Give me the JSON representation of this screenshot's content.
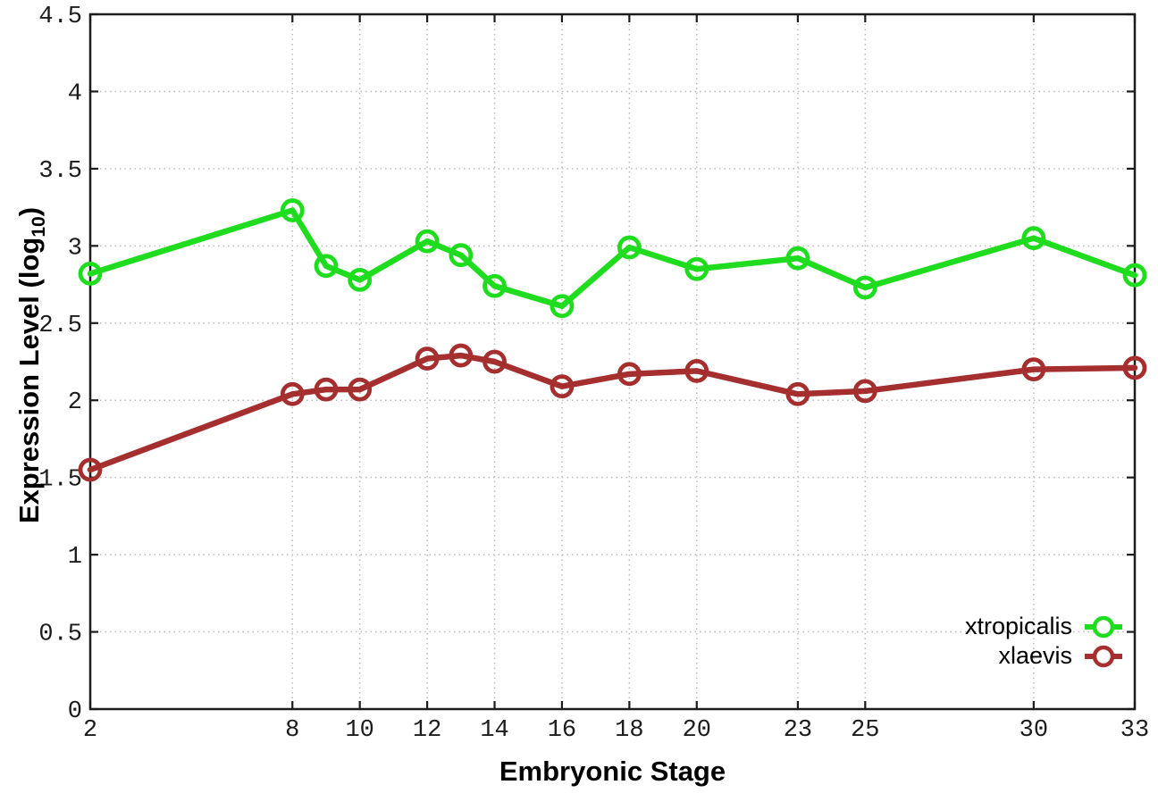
{
  "figure": {
    "background": "#ffffff",
    "border_color": "#1c1c1c",
    "grid_color": "#bcbcbc",
    "tick_label_color": "#1c1c1c"
  },
  "chart_data": {
    "type": "line",
    "title": "",
    "xlabel": "Embryonic Stage",
    "ylabel": "Expression Level (log10)",
    "ylabel_parts": {
      "prefix": "Expression Level (log",
      "sub": "10",
      "suffix": ")"
    },
    "xlim": [
      2,
      33
    ],
    "ylim": [
      0,
      4.5
    ],
    "grid": true,
    "legend_position": "inside bottom-right",
    "x": [
      2,
      8,
      9,
      10,
      12,
      13,
      14,
      16,
      18,
      20,
      23,
      25,
      30,
      33
    ],
    "xticks": [
      2,
      8,
      10,
      12,
      14,
      16,
      18,
      20,
      23,
      25,
      30,
      33
    ],
    "xtick_labels": [
      "2",
      "8",
      "10",
      "12",
      "14",
      "16",
      "18",
      "20",
      "23",
      "25",
      "30",
      "33"
    ],
    "yticks": [
      0,
      0.5,
      1,
      1.5,
      2,
      2.5,
      3,
      3.5,
      4,
      4.5
    ],
    "ytick_labels": [
      "0",
      "0.5",
      "1",
      "1.5",
      "2",
      "2.5",
      "3",
      "3.5",
      "4",
      "4.5"
    ],
    "series": [
      {
        "name": "xtropicalis",
        "color": "#1fdc1f",
        "marker": "open-circle",
        "values": [
          2.82,
          3.23,
          2.87,
          2.78,
          3.03,
          2.94,
          2.74,
          2.61,
          2.99,
          2.85,
          2.92,
          2.73,
          3.05,
          2.81
        ]
      },
      {
        "name": "xlaevis",
        "color": "#a52f2f",
        "marker": "open-circle",
        "values": [
          1.55,
          2.04,
          2.07,
          2.07,
          2.27,
          2.29,
          2.25,
          2.09,
          2.17,
          2.19,
          2.04,
          2.06,
          2.2,
          2.21
        ]
      }
    ]
  }
}
